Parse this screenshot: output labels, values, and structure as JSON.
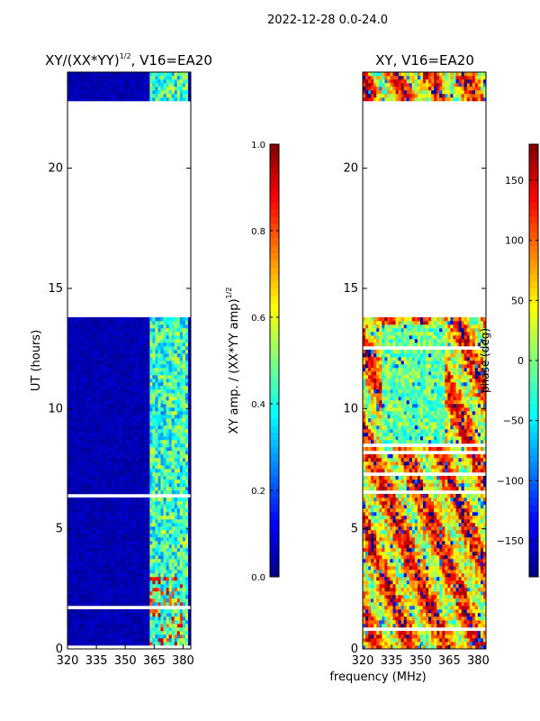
{
  "suptitle": "2022-12-28 0.0-24.0",
  "chart_data": [
    {
      "type": "heatmap",
      "title": "XY/(XX*YY)",
      "title_sup": "1/2",
      "title_suffix": ", V16=EA20",
      "ylabel": "UT (hours)",
      "xlabel": "",
      "xlim": [
        320,
        384
      ],
      "ylim": [
        0,
        24
      ],
      "xticks": [
        "320",
        "335",
        "350",
        "365",
        "380"
      ],
      "yticks": [
        "0",
        "5",
        "10",
        "15",
        "20"
      ],
      "gap_hours": [
        13.75,
        22.8
      ],
      "colorbar": {
        "label": "XY amp. / (XX*YY amp)",
        "label_sup": "1/2",
        "range": [
          0.0,
          1.0
        ],
        "ticks": [
          "0.0",
          "0.2",
          "0.4",
          "0.6",
          "0.8",
          "1.0"
        ],
        "colormap": "jet"
      }
    },
    {
      "type": "heatmap",
      "title": "XY, V16=EA20",
      "ylabel": "",
      "xlabel": "frequency (MHz)",
      "xlim": [
        320,
        384
      ],
      "ylim": [
        0,
        24
      ],
      "xticks": [
        "320",
        "335",
        "350",
        "365",
        "380"
      ],
      "yticks": [
        "0",
        "5",
        "10",
        "15",
        "20"
      ],
      "gap_hours": [
        13.75,
        22.8
      ],
      "colorbar": {
        "label": "phase (deg)",
        "range": [
          -180,
          180
        ],
        "ticks": [
          "−150",
          "−100",
          "−50",
          "0",
          "50",
          "100",
          "150"
        ],
        "colormap": "jet"
      }
    }
  ]
}
